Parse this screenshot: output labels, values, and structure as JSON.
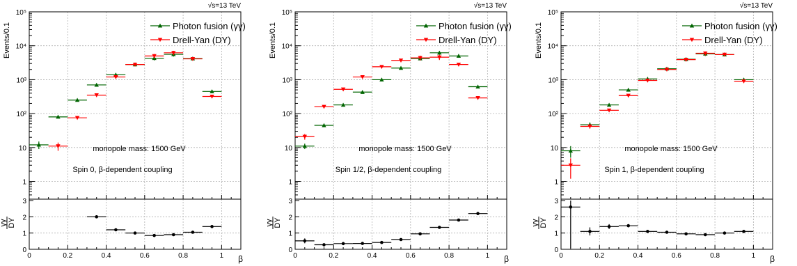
{
  "chart_data": [
    {
      "type": "scatter",
      "energy_label": "√s=13 TeV",
      "ylabel": "Events/0.1",
      "xlabel": "β",
      "ratio_ylabel_num": "γγ",
      "ratio_ylabel_den": "DY",
      "yscale": "log",
      "ylim": [
        0.3,
        100000
      ],
      "xlim": [
        0,
        1.1
      ],
      "ratio_ylim": [
        0,
        3
      ],
      "ytick_labels": [
        "1",
        "10",
        "10²",
        "10³",
        "10⁴",
        "10⁵"
      ],
      "ytick_values": [
        1,
        10,
        100,
        1000,
        10000,
        100000
      ],
      "xtick_labels": [
        "0",
        "0.2",
        "0.4",
        "0.6",
        "0.8",
        "1"
      ],
      "xtick_values": [
        0,
        0.2,
        0.4,
        0.6,
        0.8,
        1.0
      ],
      "ratio_ytick_labels": [
        "0",
        "1",
        "2",
        "3"
      ],
      "ratio_ytick_values": [
        0,
        1,
        2,
        3
      ],
      "grid": true,
      "legend_position": "top-right",
      "annotations": [
        "monopole mass: 1500 GeV",
        "Spin 0, β-dependent coupling"
      ],
      "bins": [
        0.05,
        0.15,
        0.25,
        0.35,
        0.45,
        0.55,
        0.65,
        0.75,
        0.85,
        0.95
      ],
      "bin_halfwidth": 0.05,
      "series": [
        {
          "name": "Photon fusion (γγ)",
          "color": "#006400",
          "marker": "triangle-up",
          "values": [
            12,
            80,
            250,
            700,
            1400,
            2800,
            4300,
            5600,
            4200,
            450
          ],
          "err": [
            3,
            0,
            0,
            0,
            0,
            0,
            600,
            800,
            0,
            0
          ]
        },
        {
          "name": "Drell-Yan (DY)",
          "color": "#ff0000",
          "marker": "triangle-down",
          "values": [
            null,
            11,
            75,
            350,
            1200,
            2800,
            5000,
            6200,
            4100,
            320
          ],
          "err": [
            0,
            3,
            0,
            0,
            0,
            0,
            700,
            900,
            0,
            0
          ]
        }
      ],
      "ratio": {
        "values": [
          null,
          null,
          null,
          2.0,
          1.2,
          1.0,
          0.85,
          0.9,
          1.05,
          1.4
        ],
        "err": [
          0,
          0,
          0,
          0,
          0,
          0,
          0,
          0,
          0,
          0
        ]
      }
    },
    {
      "type": "scatter",
      "energy_label": "√s=13 TeV",
      "ylabel": "Events/0.1",
      "xlabel": "β",
      "ratio_ylabel_num": "γγ",
      "ratio_ylabel_den": "DY",
      "yscale": "log",
      "ylim": [
        0.3,
        100000
      ],
      "xlim": [
        0,
        1.1
      ],
      "ratio_ylim": [
        0,
        3
      ],
      "ytick_labels": [
        "1",
        "10",
        "10²",
        "10³",
        "10⁴",
        "10⁵"
      ],
      "ytick_values": [
        1,
        10,
        100,
        1000,
        10000,
        100000
      ],
      "xtick_labels": [
        "0",
        "0.2",
        "0.4",
        "0.6",
        "0.8",
        "1"
      ],
      "xtick_values": [
        0,
        0.2,
        0.4,
        0.6,
        0.8,
        1.0
      ],
      "ratio_ytick_labels": [
        "0",
        "1",
        "2",
        "3"
      ],
      "ratio_ytick_values": [
        0,
        1,
        2,
        3
      ],
      "grid": true,
      "legend_position": "top-right",
      "annotations": [
        "monopole mass: 1500 GeV",
        "Spin 1/2, β-dependent coupling"
      ],
      "bins": [
        0.05,
        0.15,
        0.25,
        0.35,
        0.45,
        0.55,
        0.65,
        0.75,
        0.85,
        0.95
      ],
      "bin_halfwidth": 0.05,
      "series": [
        {
          "name": "Photon fusion (γγ)",
          "color": "#006400",
          "marker": "triangle-up",
          "values": [
            11,
            45,
            180,
            430,
            1000,
            2200,
            4200,
            6200,
            5000,
            620
          ],
          "err": [
            2,
            0,
            0,
            0,
            0,
            0,
            0,
            800,
            0,
            0
          ]
        },
        {
          "name": "Drell-Yan (DY)",
          "color": "#ff0000",
          "marker": "triangle-down",
          "values": [
            21,
            160,
            520,
            1200,
            2400,
            3700,
            4400,
            4600,
            2800,
            290
          ],
          "err": [
            4,
            0,
            0,
            0,
            0,
            0,
            700,
            800,
            0,
            0
          ]
        }
      ],
      "ratio": {
        "values": [
          0.52,
          0.28,
          0.35,
          0.36,
          0.42,
          0.6,
          0.95,
          1.35,
          1.8,
          2.2
        ],
        "err": [
          0.15,
          0,
          0,
          0,
          0,
          0,
          0,
          0,
          0,
          0.1
        ]
      }
    },
    {
      "type": "scatter",
      "energy_label": "√s=13 TeV",
      "ylabel": "Events/0.1",
      "xlabel": "β",
      "ratio_ylabel_num": "γγ",
      "ratio_ylabel_den": "DY",
      "yscale": "log",
      "ylim": [
        0.3,
        100000
      ],
      "xlim": [
        0,
        1.1
      ],
      "ratio_ylim": [
        0,
        3
      ],
      "ytick_labels": [
        "1",
        "10",
        "10²",
        "10³",
        "10⁴",
        "10⁵"
      ],
      "ytick_values": [
        1,
        10,
        100,
        1000,
        10000,
        100000
      ],
      "xtick_labels": [
        "0",
        "0.2",
        "0.4",
        "0.6",
        "0.8",
        "1"
      ],
      "xtick_values": [
        0,
        0.2,
        0.4,
        0.6,
        0.8,
        1.0
      ],
      "ratio_ytick_labels": [
        "0",
        "1",
        "2",
        "3"
      ],
      "ratio_ytick_values": [
        0,
        1,
        2,
        3
      ],
      "grid": true,
      "legend_position": "top-right",
      "annotations": [
        "monopole mass: 1500 GeV",
        "Spin 1, β-dependent coupling"
      ],
      "bins": [
        0.05,
        0.15,
        0.25,
        0.35,
        0.45,
        0.55,
        0.65,
        0.75,
        0.85,
        0.95
      ],
      "bin_halfwidth": 0.05,
      "series": [
        {
          "name": "Photon fusion (γγ)",
          "color": "#006400",
          "marker": "triangle-up",
          "values": [
            8,
            47,
            180,
            500,
            1050,
            2100,
            4000,
            5800,
            5500,
            1000
          ],
          "err": [
            3,
            8,
            0,
            0,
            0,
            0,
            0,
            800,
            0,
            0
          ]
        },
        {
          "name": "Drell-Yan (DY)",
          "color": "#ff0000",
          "marker": "triangle-down",
          "values": [
            3,
            42,
            125,
            340,
            950,
            2000,
            3900,
            6000,
            5500,
            900
          ],
          "err": [
            1.8,
            6,
            0,
            0,
            0,
            0,
            0,
            800,
            0,
            0
          ]
        }
      ],
      "ratio": {
        "values": [
          2.6,
          1.1,
          1.4,
          1.45,
          1.1,
          1.05,
          0.95,
          0.9,
          1.0,
          1.1
        ],
        "err": [
          2.5,
          0.25,
          0.15,
          0.1,
          0,
          0,
          0,
          0,
          0,
          0.05
        ]
      }
    }
  ]
}
